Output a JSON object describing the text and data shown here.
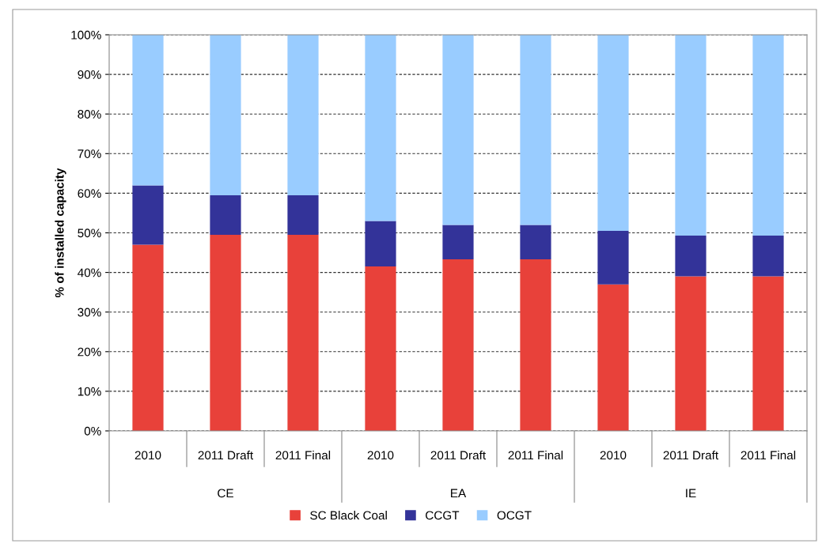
{
  "chart_data": {
    "type": "bar",
    "stacked": true,
    "ylabel": "% of installed capacity",
    "categories": [
      "2010",
      "2011 Draft",
      "2011 Final",
      "2010",
      "2011 Draft",
      "2011 Final",
      "2010",
      "2011 Draft",
      "2011 Final"
    ],
    "annotations": [
      "CE",
      "EA",
      "IE"
    ],
    "series": [
      {
        "name": "SC Black Coal",
        "color": "#e8413a",
        "values": [
          47,
          49.5,
          49.5,
          41.5,
          43.3,
          43.3,
          37,
          39,
          39
        ]
      },
      {
        "name": "CCGT",
        "color": "#333399",
        "values": [
          15,
          10,
          10,
          11.5,
          8.7,
          8.7,
          13.5,
          10.3,
          10.3
        ]
      },
      {
        "name": "OCGT",
        "color": "#99ccff",
        "values": [
          38,
          40.5,
          40.5,
          47,
          48,
          48,
          49.5,
          50.7,
          50.7
        ]
      }
    ],
    "ylim": [
      0,
      100
    ],
    "yticks": [
      {
        "value": 0,
        "label": "0%"
      },
      {
        "value": 10,
        "label": "10%"
      },
      {
        "value": 20,
        "label": "20%"
      },
      {
        "value": 30,
        "label": "30%"
      },
      {
        "value": 40,
        "label": "40%"
      },
      {
        "value": 50,
        "label": "50%"
      },
      {
        "value": 60,
        "label": "60%"
      },
      {
        "value": 70,
        "label": "70%"
      },
      {
        "value": 80,
        "label": "80%"
      },
      {
        "value": 90,
        "label": "90%"
      },
      {
        "value": 100,
        "label": "100%"
      }
    ],
    "grid": "y",
    "legend": "bottom"
  }
}
